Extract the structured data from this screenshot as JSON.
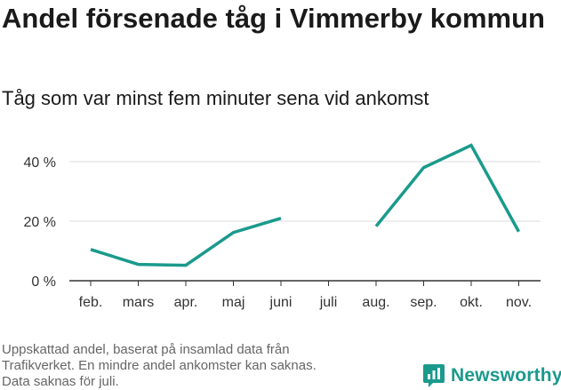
{
  "title": "Andel försenade tåg i Vimmerby kommun",
  "subtitle": "Tåg som var minst fem minuter sena vid ankomst",
  "footnote": {
    "line1": "Uppskattad andel, baserat på insamlad data från",
    "line2": "Trafikverket. En mindre andel ankomster kan saknas.",
    "line3": "Data saknas för juli."
  },
  "brand": {
    "name": "Newsworthy",
    "icon": "newsworthy-logo-icon",
    "color": "#1a9a8c"
  },
  "chart_data": {
    "type": "line",
    "title": "Andel försenade tåg i Vimmerby kommun",
    "subtitle": "Tåg som var minst fem minuter sena vid ankomst",
    "categories": [
      "feb.",
      "mars",
      "apr.",
      "maj",
      "juni",
      "juli",
      "aug.",
      "sep.",
      "okt.",
      "nov."
    ],
    "series": [
      {
        "values": [
          10.5,
          5.5,
          5.2,
          16.2,
          21.0,
          null,
          18.3,
          38.0,
          45.5,
          16.5
        ],
        "color": "#1a9a8c"
      }
    ],
    "y_ticks": [
      0,
      20,
      40
    ],
    "y_tick_labels": [
      "0 %",
      "20 %",
      "40 %"
    ],
    "ylim": [
      0,
      48
    ],
    "grid": true,
    "xlabel": "",
    "ylabel": ""
  }
}
